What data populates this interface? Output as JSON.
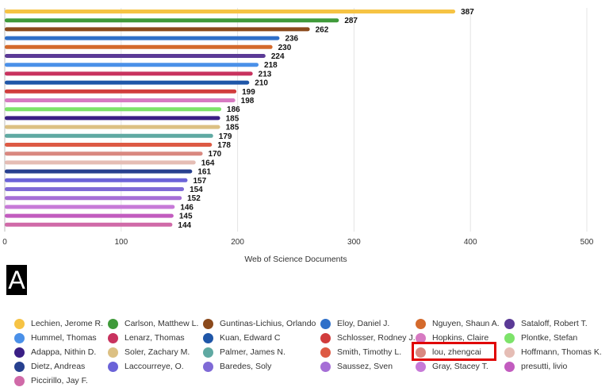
{
  "panel_label": "A",
  "chart_data": {
    "type": "bar",
    "orientation": "horizontal",
    "title": "",
    "xlabel": "Web of Science Documents",
    "ylabel": "",
    "xlim": [
      0,
      500
    ],
    "xticks": [
      0,
      100,
      200,
      300,
      400,
      500
    ],
    "grid": true,
    "legend_position": "bottom",
    "highlighted": "lou, zhengcai",
    "series": [
      {
        "name": "Lechien, Jerome R.",
        "value": 387,
        "color": "#f6c344"
      },
      {
        "name": "Carlson, Matthew L.",
        "value": 287,
        "color": "#3f9a3a"
      },
      {
        "name": "Guntinas-Lichius, Orlando",
        "value": 262,
        "color": "#8b4a1c"
      },
      {
        "name": "Eloy, Daniel J.",
        "value": 236,
        "color": "#2e6fc9"
      },
      {
        "name": "Nguyen, Shaun A.",
        "value": 230,
        "color": "#d46a2c"
      },
      {
        "name": "Sataloff, Robert T.",
        "value": 224,
        "color": "#5b3a96"
      },
      {
        "name": "Hummel, Thomas",
        "value": 218,
        "color": "#4a90e8"
      },
      {
        "name": "Lenarz, Thomas",
        "value": 213,
        "color": "#c8325e"
      },
      {
        "name": "Kuan, Edward C",
        "value": 210,
        "color": "#1f56a8"
      },
      {
        "name": "Schlosser, Rodney J.",
        "value": 199,
        "color": "#d13c3c"
      },
      {
        "name": "Hopkins, Claire",
        "value": 198,
        "color": "#d77ac2"
      },
      {
        "name": "Plontke, Stefan",
        "value": 186,
        "color": "#7de36a"
      },
      {
        "name": "Adappa, Nithin D.",
        "value": 185,
        "color": "#3a1f85"
      },
      {
        "name": "Soler, Zachary M.",
        "value": 185,
        "color": "#dcc083"
      },
      {
        "name": "Palmer, James N.",
        "value": 179,
        "color": "#5fa9a2"
      },
      {
        "name": "Smith, Timothy L.",
        "value": 178,
        "color": "#dd5a44"
      },
      {
        "name": "lou, zhengcai",
        "value": 170,
        "color": "#d98880"
      },
      {
        "name": "Hoffmann, Thomas K.",
        "value": 164,
        "color": "#e5bdb5"
      },
      {
        "name": "Dietz, Andreas",
        "value": 161,
        "color": "#27408f"
      },
      {
        "name": "Laccourreye, O.",
        "value": 157,
        "color": "#6b63d8"
      },
      {
        "name": "Baredes, Soly",
        "value": 154,
        "color": "#7f6ad6"
      },
      {
        "name": "Saussez, Sven",
        "value": 152,
        "color": "#a56ed6"
      },
      {
        "name": "Gray, Stacey T.",
        "value": 146,
        "color": "#c77ad8"
      },
      {
        "name": "presutti, livio",
        "value": 145,
        "color": "#c25cbf"
      },
      {
        "name": "Piccirillo, Jay F.",
        "value": 144,
        "color": "#d06aa8"
      }
    ]
  }
}
